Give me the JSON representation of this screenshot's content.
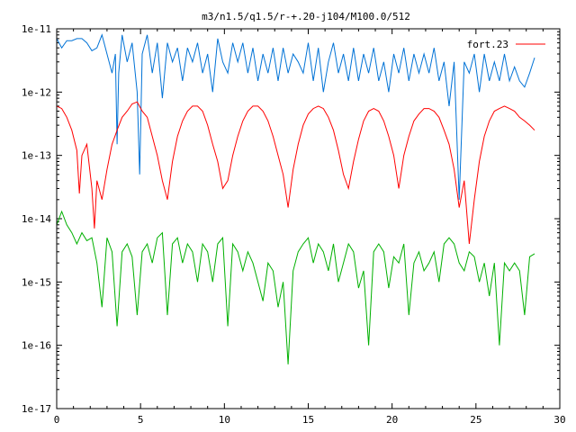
{
  "chart_data": {
    "type": "line",
    "title": "m3/n1.5/q1.5/r-+.20-j104/M100.0/512",
    "xlabel": "",
    "ylabel": "",
    "xlim": [
      0,
      30
    ],
    "ylim": [
      1e-17,
      1e-11
    ],
    "yscale": "log",
    "grid": false,
    "legend_position": "top-right",
    "x_ticks": [
      0,
      5,
      10,
      15,
      20,
      25,
      30
    ],
    "x_tick_labels": [
      "0",
      "5",
      "10",
      "15",
      "20",
      "25",
      "30"
    ],
    "y_ticks": [
      1e-11,
      1e-12,
      1e-13,
      1e-14,
      1e-15,
      1e-16,
      1e-17
    ],
    "y_tick_labels": [
      "1e-11",
      "1e-12",
      "1e-13",
      "1e-14",
      "1e-15",
      "1e-16",
      "1e-17"
    ],
    "series": [
      {
        "name": "",
        "color": "#0072d6",
        "x": [
          0.0,
          0.3,
          0.6,
          0.9,
          1.2,
          1.5,
          1.8,
          2.1,
          2.4,
          2.7,
          3.0,
          3.3,
          3.5,
          3.6,
          3.7,
          3.9,
          4.2,
          4.5,
          4.8,
          4.95,
          5.1,
          5.4,
          5.7,
          6.0,
          6.3,
          6.6,
          6.9,
          7.2,
          7.5,
          7.8,
          8.1,
          8.4,
          8.7,
          9.0,
          9.3,
          9.6,
          9.9,
          10.2,
          10.5,
          10.8,
          11.1,
          11.4,
          11.7,
          12.0,
          12.3,
          12.6,
          12.9,
          13.2,
          13.5,
          13.8,
          14.1,
          14.4,
          14.7,
          15.0,
          15.3,
          15.6,
          15.9,
          16.2,
          16.5,
          16.8,
          17.1,
          17.4,
          17.7,
          18.0,
          18.3,
          18.6,
          18.9,
          19.2,
          19.5,
          19.8,
          20.1,
          20.4,
          20.7,
          21.0,
          21.3,
          21.6,
          21.9,
          22.2,
          22.5,
          22.8,
          23.1,
          23.4,
          23.7,
          24.0,
          24.3,
          24.6,
          24.9,
          25.2,
          25.5,
          25.8,
          26.1,
          26.4,
          26.7,
          27.0,
          27.3,
          27.6,
          27.9,
          28.2,
          28.5
        ],
        "values": [
          7e-12,
          5e-12,
          6.5e-12,
          6.5e-12,
          7e-12,
          7e-12,
          6e-12,
          4.5e-12,
          5e-12,
          8e-12,
          4e-12,
          2e-12,
          4e-12,
          1.5e-13,
          2e-12,
          8e-12,
          3e-12,
          6e-12,
          1e-12,
          5e-14,
          4e-12,
          8e-12,
          2e-12,
          6e-12,
          8e-13,
          6e-12,
          3e-12,
          5e-12,
          1.5e-12,
          5e-12,
          3e-12,
          6e-12,
          2e-12,
          4e-12,
          1e-12,
          7e-12,
          3e-12,
          2e-12,
          6e-12,
          3e-12,
          6e-12,
          2e-12,
          5e-12,
          1.5e-12,
          4e-12,
          2e-12,
          5e-12,
          1.5e-12,
          5e-12,
          2e-12,
          4e-12,
          3e-12,
          2e-12,
          6e-12,
          1.5e-12,
          5e-12,
          1e-12,
          3e-12,
          6e-12,
          2e-12,
          4e-12,
          1.5e-12,
          5e-12,
          1.5e-12,
          4e-12,
          2e-12,
          5e-12,
          1.5e-12,
          3e-12,
          1e-12,
          4e-12,
          2e-12,
          5e-12,
          1.5e-12,
          4e-12,
          2e-12,
          4e-12,
          2e-12,
          5e-12,
          1.5e-12,
          3e-12,
          6e-13,
          3e-12,
          2e-14,
          3e-12,
          2e-12,
          4e-12,
          1e-12,
          4e-12,
          1.5e-12,
          3e-12,
          1.5e-12,
          4e-12,
          1.5e-12,
          2.5e-12,
          1.5e-12,
          1.2e-12,
          2e-12,
          3.5e-12
        ]
      },
      {
        "name": "fort.23",
        "color": "#ff0000",
        "x": [
          0.0,
          0.3,
          0.6,
          0.9,
          1.2,
          1.35,
          1.5,
          1.8,
          2.1,
          2.25,
          2.4,
          2.7,
          3.0,
          3.3,
          3.6,
          3.9,
          4.2,
          4.5,
          4.8,
          5.1,
          5.4,
          5.7,
          6.0,
          6.3,
          6.6,
          6.9,
          7.2,
          7.5,
          7.8,
          8.1,
          8.4,
          8.7,
          9.0,
          9.3,
          9.6,
          9.9,
          10.2,
          10.5,
          10.8,
          11.1,
          11.4,
          11.7,
          12.0,
          12.3,
          12.6,
          12.9,
          13.2,
          13.5,
          13.8,
          14.1,
          14.4,
          14.7,
          15.0,
          15.3,
          15.6,
          15.9,
          16.2,
          16.5,
          16.8,
          17.1,
          17.4,
          17.7,
          18.0,
          18.3,
          18.6,
          18.9,
          19.2,
          19.5,
          19.8,
          20.1,
          20.4,
          20.7,
          21.0,
          21.3,
          21.6,
          21.9,
          22.2,
          22.5,
          22.8,
          23.1,
          23.4,
          23.7,
          24.0,
          24.3,
          24.6,
          24.9,
          25.2,
          25.5,
          25.8,
          26.1,
          26.4,
          26.7,
          27.0,
          27.3,
          27.6,
          27.9,
          28.2,
          28.5
        ],
        "values": [
          6e-13,
          5.5e-13,
          4e-13,
          2.5e-13,
          1.2e-13,
          2.5e-14,
          1e-13,
          1.5e-13,
          3e-14,
          7e-15,
          4e-14,
          2e-14,
          6e-14,
          1.5e-13,
          2.5e-13,
          4e-13,
          5e-13,
          6.5e-13,
          7e-13,
          5e-13,
          4e-13,
          2e-13,
          1e-13,
          4e-14,
          2e-14,
          8e-14,
          2e-13,
          3.5e-13,
          5e-13,
          6e-13,
          6e-13,
          5e-13,
          3e-13,
          1.5e-13,
          8e-14,
          3e-14,
          4e-14,
          1e-13,
          2e-13,
          3.5e-13,
          5e-13,
          6e-13,
          6e-13,
          5e-13,
          3.5e-13,
          2e-13,
          1e-13,
          5e-14,
          1.5e-14,
          6e-14,
          1.5e-13,
          3e-13,
          4.5e-13,
          5.5e-13,
          6e-13,
          5.5e-13,
          4e-13,
          2.5e-13,
          1.2e-13,
          5e-14,
          3e-14,
          8e-14,
          1.8e-13,
          3.5e-13,
          5e-13,
          5.5e-13,
          5e-13,
          3.5e-13,
          2e-13,
          1e-13,
          3e-14,
          1e-13,
          2e-13,
          3.5e-13,
          4.5e-13,
          5.5e-13,
          5.5e-13,
          5e-13,
          4e-13,
          2.5e-13,
          1.5e-13,
          6e-14,
          1.5e-14,
          4e-14,
          4e-15,
          2e-14,
          8e-14,
          2e-13,
          3.5e-13,
          5e-13,
          5.5e-13,
          6e-13,
          5.5e-13,
          5e-13,
          4e-13,
          3.5e-13,
          3e-13,
          2.5e-13
        ]
      },
      {
        "name": "",
        "color": "#00b000",
        "x": [
          0.0,
          0.3,
          0.6,
          0.9,
          1.2,
          1.5,
          1.8,
          2.1,
          2.4,
          2.7,
          3.0,
          3.3,
          3.6,
          3.9,
          4.2,
          4.5,
          4.8,
          5.1,
          5.4,
          5.7,
          6.0,
          6.3,
          6.6,
          6.9,
          7.2,
          7.5,
          7.8,
          8.1,
          8.4,
          8.7,
          9.0,
          9.3,
          9.6,
          9.9,
          10.2,
          10.5,
          10.8,
          11.1,
          11.4,
          11.7,
          12.0,
          12.3,
          12.6,
          12.9,
          13.2,
          13.5,
          13.8,
          14.1,
          14.4,
          14.7,
          15.0,
          15.3,
          15.6,
          15.9,
          16.2,
          16.5,
          16.8,
          17.1,
          17.4,
          17.7,
          18.0,
          18.3,
          18.6,
          18.9,
          19.2,
          19.5,
          19.8,
          20.1,
          20.4,
          20.7,
          21.0,
          21.3,
          21.6,
          21.9,
          22.2,
          22.5,
          22.8,
          23.1,
          23.4,
          23.7,
          24.0,
          24.3,
          24.6,
          24.9,
          25.2,
          25.5,
          25.8,
          26.1,
          26.4,
          26.7,
          27.0,
          27.3,
          27.6,
          27.9,
          28.2,
          28.5
        ],
        "values": [
          8e-15,
          1.3e-14,
          8e-15,
          6e-15,
          4e-15,
          6e-15,
          4.5e-15,
          5e-15,
          2e-15,
          4e-16,
          5e-15,
          3e-15,
          2e-16,
          3e-15,
          4e-15,
          2.5e-15,
          3e-16,
          3e-15,
          4e-15,
          2e-15,
          5e-15,
          6e-15,
          3e-16,
          4e-15,
          5e-15,
          2e-15,
          4e-15,
          3e-15,
          1e-15,
          4e-15,
          3e-15,
          1e-15,
          4e-15,
          5e-15,
          2e-16,
          4e-15,
          3e-15,
          1.5e-15,
          3e-15,
          2e-15,
          1e-15,
          5e-16,
          2e-15,
          1.5e-15,
          4e-16,
          1e-15,
          5e-17,
          1.5e-15,
          3e-15,
          4e-15,
          5e-15,
          2e-15,
          4e-15,
          3e-15,
          1.5e-15,
          4e-15,
          1e-15,
          2e-15,
          4e-15,
          3e-15,
          8e-16,
          1.5e-15,
          1e-16,
          3e-15,
          4e-15,
          3e-15,
          8e-16,
          2.5e-15,
          2e-15,
          4e-15,
          3e-16,
          2e-15,
          3e-15,
          1.5e-15,
          2e-15,
          3e-15,
          1e-15,
          4e-15,
          5e-15,
          4e-15,
          2e-15,
          1.5e-15,
          3e-15,
          2.5e-15,
          1e-15,
          2e-15,
          6e-16,
          2e-15,
          1e-16,
          2e-15,
          1.5e-15,
          2e-15,
          1.5e-15,
          3e-16,
          2.5e-15,
          2.8e-15
        ]
      }
    ]
  }
}
